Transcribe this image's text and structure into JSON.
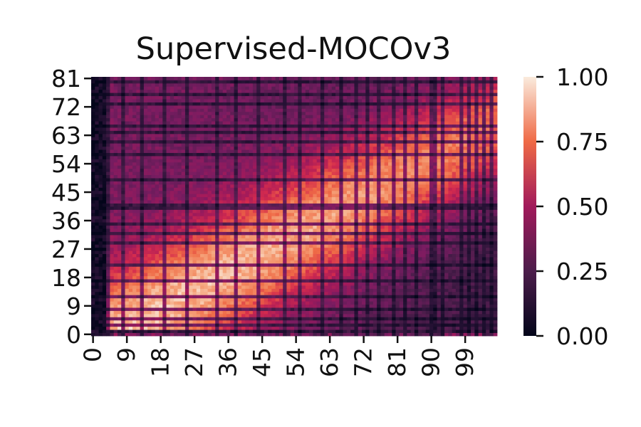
{
  "chart_data": {
    "type": "heatmap",
    "title": "Supervised-MOCOv3",
    "xlabel": "",
    "ylabel": "",
    "x_ticks": [
      "0",
      "9",
      "18",
      "27",
      "36",
      "45",
      "54",
      "63",
      "72",
      "81",
      "90",
      "99"
    ],
    "y_ticks": [
      "0",
      "9",
      "18",
      "27",
      "36",
      "45",
      "54",
      "63",
      "72",
      "81"
    ],
    "x_range": [
      0,
      108
    ],
    "y_range": [
      0,
      81
    ],
    "colorscale": "rocket",
    "colorbar": {
      "range": [
        0,
        1
      ],
      "ticks": [
        "0.00",
        "0.25",
        "0.50",
        "0.75",
        "1.00"
      ]
    },
    "dark_rows": [
      1,
      3,
      5,
      8,
      12,
      17,
      22,
      29,
      32,
      35,
      40,
      41,
      49,
      57,
      61,
      64,
      66,
      73,
      76,
      80
    ],
    "dark_cols": [
      0,
      1,
      2,
      3,
      4,
      8,
      13,
      19,
      25,
      33,
      38,
      44,
      51,
      55,
      61,
      66,
      70,
      73,
      76,
      80,
      83,
      86,
      90,
      91,
      93,
      98,
      100,
      102,
      104,
      106
    ],
    "pattern_description_values": {
      "max_similarity_region": "diagonal x≈y*1.2, peak near x 9–27, y 9–27",
      "min_similarity_region": "x 0–4 (left columns), bottom-right"
    }
  }
}
